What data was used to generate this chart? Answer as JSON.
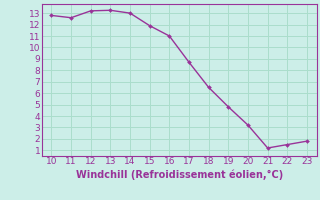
{
  "x": [
    10,
    11,
    12,
    13,
    14,
    15,
    16,
    17,
    18,
    19,
    20,
    21,
    22,
    23
  ],
  "y": [
    12.8,
    12.6,
    13.2,
    13.25,
    13.0,
    11.9,
    11.0,
    8.7,
    6.5,
    4.8,
    3.2,
    1.2,
    1.5,
    1.8
  ],
  "line_color": "#993399",
  "marker": "D",
  "marker_size": 2,
  "line_width": 1.0,
  "background_color": "#cceee8",
  "grid_color": "#aaddcc",
  "xlabel": "Windchill (Refroidissement éolien,°C)",
  "xlabel_color": "#993399",
  "tick_color": "#993399",
  "xlim": [
    9.5,
    23.5
  ],
  "ylim": [
    0.5,
    13.8
  ],
  "xticks": [
    10,
    11,
    12,
    13,
    14,
    15,
    16,
    17,
    18,
    19,
    20,
    21,
    22,
    23
  ],
  "yticks": [
    1,
    2,
    3,
    4,
    5,
    6,
    7,
    8,
    9,
    10,
    11,
    12,
    13
  ],
  "font_size": 6.5,
  "xlabel_fontsize": 7.0
}
